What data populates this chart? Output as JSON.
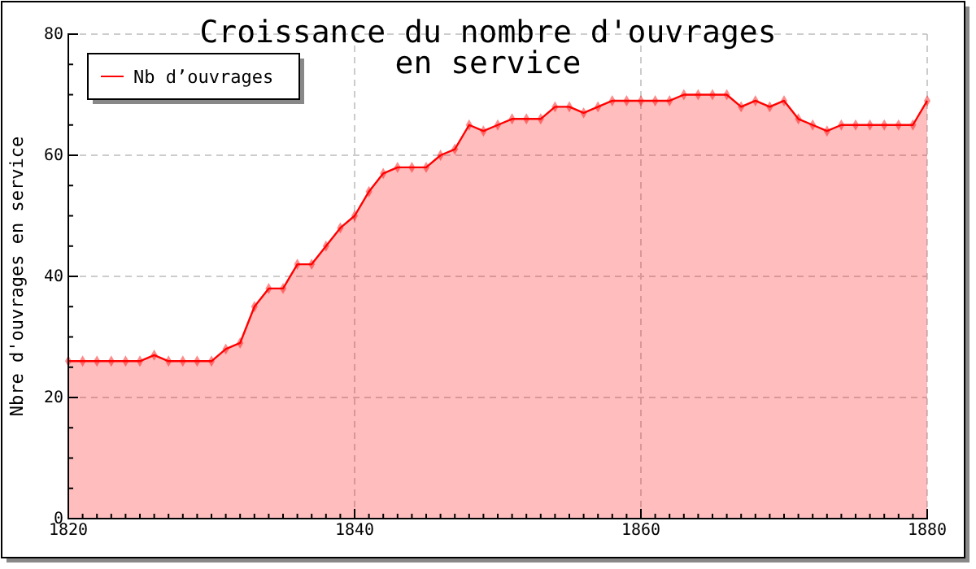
{
  "chart_data": {
    "type": "area",
    "title": "Croissance du nombre d'ouvrages\nen service",
    "ylabel": "Nbre d'ouvrages en service",
    "x": [
      1820,
      1821,
      1822,
      1823,
      1824,
      1825,
      1826,
      1827,
      1828,
      1829,
      1830,
      1831,
      1832,
      1833,
      1834,
      1835,
      1836,
      1837,
      1838,
      1839,
      1840,
      1841,
      1842,
      1843,
      1844,
      1845,
      1846,
      1847,
      1848,
      1849,
      1850,
      1851,
      1852,
      1853,
      1854,
      1855,
      1856,
      1857,
      1858,
      1859,
      1860,
      1861,
      1862,
      1863,
      1864,
      1865,
      1866,
      1867,
      1868,
      1869,
      1870,
      1871,
      1872,
      1873,
      1874,
      1875,
      1876,
      1877,
      1878,
      1879,
      1880
    ],
    "series": [
      {
        "name": "Nb d’ouvrages",
        "color": "#ff0000",
        "values": [
          26,
          26,
          26,
          26,
          26,
          26,
          27,
          26,
          26,
          26,
          26,
          28,
          29,
          35,
          38,
          38,
          42,
          42,
          45,
          48,
          50,
          54,
          57,
          58,
          58,
          58,
          60,
          61,
          65,
          64,
          65,
          66,
          66,
          66,
          68,
          68,
          67,
          68,
          69,
          69,
          69,
          69,
          69,
          70,
          70,
          70,
          70,
          68,
          69,
          68,
          69,
          66,
          65,
          64,
          65,
          65,
          65,
          65,
          65,
          65,
          69
        ]
      }
    ],
    "xlim": [
      1820,
      1880
    ],
    "xticks": [
      1820,
      1840,
      1860,
      1880
    ],
    "ylim": [
      0,
      80
    ],
    "yticks": [
      0,
      20,
      40,
      60,
      80
    ],
    "grid": true,
    "legend": "top left",
    "marker": "diamond",
    "line_style": "solid"
  }
}
